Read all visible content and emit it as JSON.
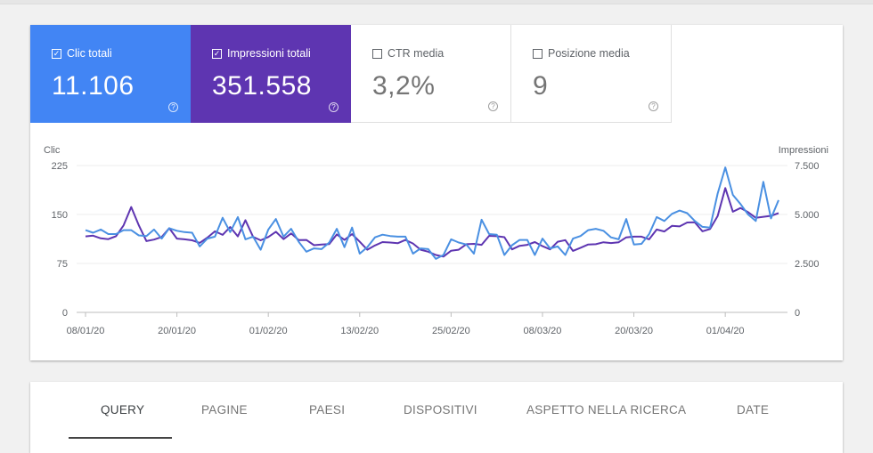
{
  "metrics": [
    {
      "label": "Clic totali",
      "value": "11.106",
      "checked": true
    },
    {
      "label": "Impressioni totali",
      "value": "351.558",
      "checked": true
    },
    {
      "label": "CTR media",
      "value": "3,2%",
      "checked": false
    },
    {
      "label": "Posizione media",
      "value": "9",
      "checked": false
    }
  ],
  "help_glyph": "?",
  "check_glyph": "✓",
  "chart_data": {
    "type": "line",
    "left_axis_label": "Clic",
    "right_axis_label": "Impressioni",
    "left_ticks": [
      "0",
      "75",
      "150",
      "225"
    ],
    "right_ticks": [
      "0",
      "2.500",
      "5.000",
      "7.500"
    ],
    "left_ylim": [
      0,
      225
    ],
    "right_ylim": [
      0,
      7500
    ],
    "x_labels": [
      "08/01/20",
      "20/01/20",
      "01/02/20",
      "13/02/20",
      "25/02/20",
      "08/03/20",
      "20/03/20",
      "01/04/20"
    ],
    "grid": true,
    "colors": {
      "clic": "#4a90e2",
      "impressioni": "#5e35b1"
    },
    "series": [
      {
        "key": "clic",
        "axis": "left",
        "values": [
          126,
          122,
          127,
          120,
          120,
          126,
          126,
          118,
          117,
          127,
          113,
          129,
          125,
          123,
          122,
          101,
          113,
          116,
          145,
          123,
          146,
          112,
          116,
          96,
          127,
          143,
          116,
          128,
          108,
          93,
          98,
          97,
          107,
          128,
          100,
          130,
          90,
          100,
          115,
          119,
          117,
          116,
          116,
          90,
          98,
          97,
          82,
          88,
          112,
          107,
          104,
          90,
          142,
          120,
          119,
          88,
          103,
          111,
          111,
          88,
          113,
          98,
          101,
          88,
          113,
          117,
          126,
          128,
          125,
          115,
          112,
          143,
          104,
          105,
          120,
          146,
          140,
          151,
          156,
          152,
          140,
          131,
          130,
          182,
          222,
          180,
          166,
          150,
          140,
          200,
          144,
          172
        ]
      },
      {
        "key": "impressioni",
        "axis": "right",
        "values": [
          3880,
          3920,
          3780,
          3740,
          3890,
          4440,
          5380,
          4450,
          3640,
          3720,
          3850,
          4300,
          3770,
          3730,
          3680,
          3550,
          3820,
          4140,
          3960,
          4360,
          3880,
          4710,
          3860,
          3680,
          3850,
          4120,
          3740,
          4030,
          3690,
          3700,
          3430,
          3470,
          3490,
          3980,
          3700,
          4000,
          3610,
          3200,
          3420,
          3590,
          3570,
          3530,
          3700,
          3520,
          3200,
          3100,
          2930,
          2850,
          3150,
          3200,
          3480,
          3500,
          3450,
          3910,
          3890,
          3840,
          3220,
          3400,
          3450,
          3590,
          3380,
          3220,
          3610,
          3690,
          3140,
          3300,
          3470,
          3480,
          3580,
          3540,
          3580,
          3830,
          3870,
          3870,
          3730,
          4230,
          4130,
          4420,
          4390,
          4590,
          4600,
          4140,
          4260,
          4920,
          6350,
          5140,
          5330,
          5120,
          4830,
          4880,
          4930,
          5070
        ]
      }
    ]
  },
  "tabs": [
    "QUERY",
    "PAGINE",
    "PAESI",
    "DISPOSITIVI",
    "ASPETTO NELLA RICERCA",
    "DATE"
  ]
}
